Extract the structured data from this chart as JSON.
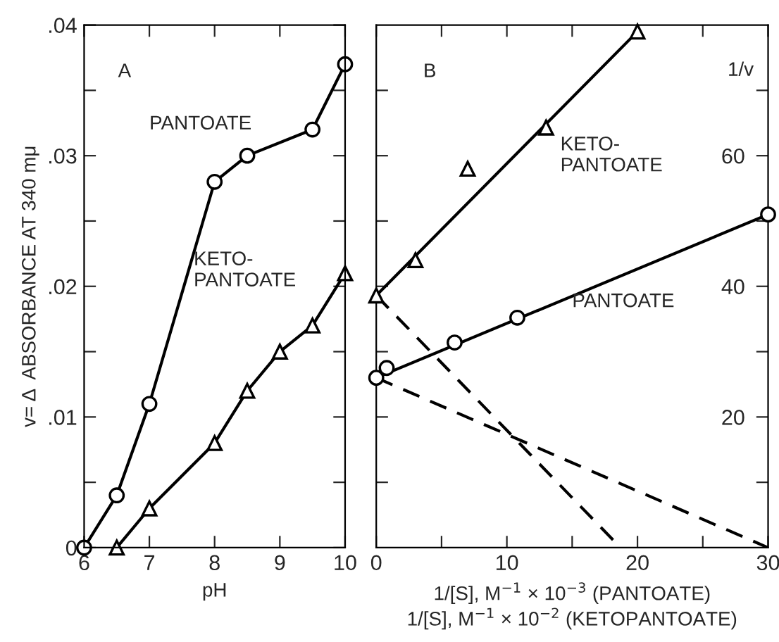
{
  "chart_data": [
    {
      "type": "line",
      "xlabel": "pH",
      "ylabel": "v= Δ  ABSORBANCE AT 340 mμ",
      "xlim": [
        6,
        10
      ],
      "ylim": [
        0,
        0.04
      ],
      "xticks": [
        6,
        7,
        8,
        9,
        10
      ],
      "yticks": [
        {
          "value": 0,
          "label": "0"
        },
        {
          "value": 0.005,
          "label": null
        },
        {
          "value": 0.01,
          "label": ".01"
        },
        {
          "value": 0.015,
          "label": null
        },
        {
          "value": 0.02,
          "label": ".02"
        },
        {
          "value": 0.025,
          "label": null
        },
        {
          "value": 0.03,
          "label": ".03"
        },
        {
          "value": 0.035,
          "label": null
        },
        {
          "value": 0.04,
          "label": ".04"
        }
      ],
      "grid": false,
      "legend": false,
      "series": [
        {
          "color": "#000000",
          "marker": "circle",
          "x": [
            6,
            6.5,
            7,
            8,
            8.5,
            9.5,
            10
          ],
          "values": [
            0,
            0.004,
            0.011,
            0.028,
            0.03,
            0.032,
            0.037
          ]
        },
        {
          "color": "#000000",
          "marker": "triangle",
          "x": [
            6.5,
            7,
            8,
            8.5,
            9,
            9.5,
            10
          ],
          "values": [
            0,
            0.003,
            0.008,
            0.012,
            0.015,
            0.017,
            0.021
          ]
        }
      ],
      "annotations": [
        "A",
        "PANTOATE",
        "KETO-\nPANTOATE"
      ]
    },
    {
      "type": "line",
      "xlabel": "1/[S], M$^{−1}$ × 10$^{−3}$ (PANTOATE)\n1/[S], M$^{−1}$ × 10$^{−2}$ (KETOPANTOATE)",
      "ylabel": "1/v",
      "xlim": [
        0,
        30
      ],
      "ylim": [
        0,
        80
      ],
      "xticks": [
        0,
        {
          "value": 5,
          "label": null
        },
        10,
        {
          "value": 15,
          "label": null
        },
        20,
        {
          "value": 25,
          "label": null
        },
        30
      ],
      "yticks": [
        {
          "value": 10,
          "label": null
        },
        20,
        {
          "value": 30,
          "label": null
        },
        40,
        {
          "value": 50,
          "label": null
        },
        60,
        {
          "value": 70,
          "label": null
        }
      ],
      "grid": false,
      "legend": false,
      "series": [
        {
          "type": "scatter",
          "color": "#000000",
          "marker": "triangle",
          "x": [
            0,
            3,
            7,
            13,
            20
          ],
          "values": [
            38.6,
            44,
            58,
            64.3,
            79
          ]
        },
        {
          "type": "line",
          "color": "#000000",
          "marker": "none",
          "x": [
            0,
            20
          ],
          "values": [
            38.6,
            79
          ]
        },
        {
          "type": "scatter",
          "color": "#000000",
          "marker": "circle",
          "x": [
            0,
            0.8,
            6,
            10.8,
            30
          ],
          "values": [
            26,
            27.5,
            31.4,
            35.2,
            51
          ]
        },
        {
          "type": "line",
          "color": "#000000",
          "marker": "none",
          "x": [
            0,
            30
          ],
          "values": [
            26,
            51
          ]
        },
        {
          "type": "line",
          "color": "#000000",
          "marker": "none",
          "line_style": "dashed",
          "x": [
            0,
            18.7
          ],
          "values": [
            38.6,
            0
          ]
        },
        {
          "type": "line",
          "color": "#000000",
          "marker": "none",
          "line_style": "dashed",
          "x": [
            0,
            30
          ],
          "values": [
            26,
            0
          ]
        }
      ],
      "annotations": [
        "B",
        "KETO-\nPANTOATE",
        "PANTOATE"
      ]
    }
  ]
}
